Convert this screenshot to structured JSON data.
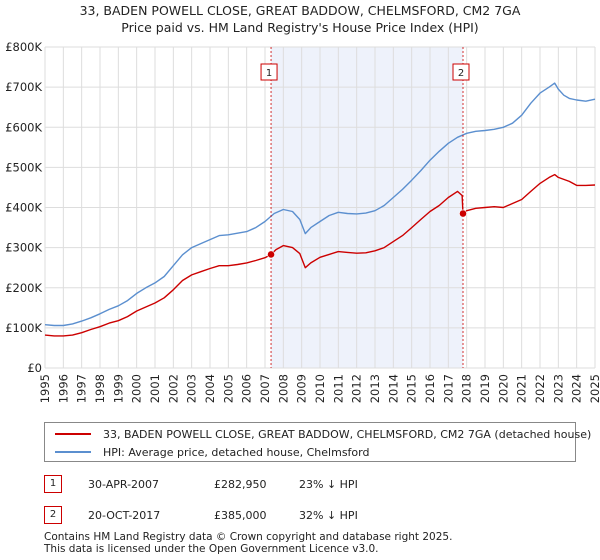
{
  "chart_data": {
    "type": "line",
    "title": "33, BADEN POWELL CLOSE, GREAT BADDOW, CHELMSFORD, CM2 7GA",
    "subtitle": "Price paid vs. HM Land Registry's House Price Index (HPI)",
    "xlim": [
      1995,
      2025
    ],
    "ylim": [
      0,
      800000
    ],
    "x_ticks": [
      "1995",
      "1996",
      "1997",
      "1998",
      "1999",
      "2000",
      "2001",
      "2002",
      "2003",
      "2004",
      "2005",
      "2006",
      "2007",
      "2008",
      "2009",
      "2010",
      "2011",
      "2012",
      "2013",
      "2014",
      "2015",
      "2016",
      "2017",
      "2018",
      "2019",
      "2020",
      "2021",
      "2022",
      "2023",
      "2024",
      "2025"
    ],
    "y_ticks": [
      {
        "value": 0,
        "label": "£0"
      },
      {
        "value": 100000,
        "label": "£100K"
      },
      {
        "value": 200000,
        "label": "£200K"
      },
      {
        "value": 300000,
        "label": "£300K"
      },
      {
        "value": 400000,
        "label": "£400K"
      },
      {
        "value": 500000,
        "label": "£500K"
      },
      {
        "value": 600000,
        "label": "£600K"
      },
      {
        "value": 700000,
        "label": "£700K"
      },
      {
        "value": 800000,
        "label": "£800K"
      }
    ],
    "grid": true,
    "shaded_period": [
      2007.33,
      2017.8
    ],
    "series": [
      {
        "name": "33, BADEN POWELL CLOSE, GREAT BADDOW, CHELMSFORD, CM2 7GA (detached house)",
        "color": "#cc0000",
        "x": [
          1995.0,
          1995.5,
          1996.0,
          1996.5,
          1997.0,
          1997.5,
          1998.0,
          1998.5,
          1999.0,
          1999.5,
          2000.0,
          2000.5,
          2001.0,
          2001.5,
          2002.0,
          2002.5,
          2003.0,
          2003.5,
          2004.0,
          2004.5,
          2005.0,
          2005.5,
          2006.0,
          2006.5,
          2007.0,
          2007.33,
          2007.6,
          2008.0,
          2008.5,
          2008.9,
          2009.2,
          2009.5,
          2010.0,
          2010.5,
          2011.0,
          2011.5,
          2012.0,
          2012.5,
          2013.0,
          2013.5,
          2014.0,
          2014.5,
          2015.0,
          2015.5,
          2016.0,
          2016.5,
          2017.0,
          2017.5,
          2017.75,
          2017.8,
          2018.0,
          2018.5,
          2019.0,
          2019.5,
          2020.0,
          2020.5,
          2021.0,
          2021.5,
          2022.0,
          2022.5,
          2022.8,
          2023.0,
          2023.3,
          2023.6,
          2024.0,
          2024.5,
          2025.0
        ],
        "values": [
          82000,
          80000,
          80000,
          82000,
          88000,
          96000,
          103000,
          112000,
          118000,
          128000,
          142000,
          152000,
          162000,
          175000,
          195000,
          218000,
          232000,
          240000,
          248000,
          255000,
          255000,
          258000,
          262000,
          268000,
          275000,
          282950,
          295000,
          305000,
          300000,
          285000,
          250000,
          262000,
          276000,
          283000,
          290000,
          288000,
          286000,
          287000,
          292000,
          300000,
          315000,
          330000,
          350000,
          370000,
          390000,
          405000,
          425000,
          440000,
          430000,
          385000,
          392000,
          398000,
          400000,
          402000,
          400000,
          410000,
          420000,
          440000,
          460000,
          475000,
          482000,
          475000,
          470000,
          465000,
          455000,
          455000,
          456000
        ]
      },
      {
        "name": "HPI: Average price, detached house, Chelmsford",
        "color": "#5b8fcf",
        "x": [
          1995.0,
          1995.5,
          1996.0,
          1996.5,
          1997.0,
          1997.5,
          1998.0,
          1998.5,
          1999.0,
          1999.5,
          2000.0,
          2000.5,
          2001.0,
          2001.5,
          2002.0,
          2002.5,
          2003.0,
          2003.5,
          2004.0,
          2004.5,
          2005.0,
          2005.5,
          2006.0,
          2006.5,
          2007.0,
          2007.5,
          2008.0,
          2008.5,
          2008.9,
          2009.2,
          2009.5,
          2010.0,
          2010.5,
          2011.0,
          2011.5,
          2012.0,
          2012.5,
          2013.0,
          2013.5,
          2014.0,
          2014.5,
          2015.0,
          2015.5,
          2016.0,
          2016.5,
          2017.0,
          2017.5,
          2018.0,
          2018.5,
          2019.0,
          2019.5,
          2020.0,
          2020.5,
          2021.0,
          2021.5,
          2022.0,
          2022.5,
          2022.8,
          2023.0,
          2023.3,
          2023.6,
          2024.0,
          2024.5,
          2025.0
        ],
        "values": [
          108000,
          106000,
          106000,
          110000,
          117000,
          125000,
          135000,
          146000,
          155000,
          168000,
          186000,
          200000,
          212000,
          228000,
          255000,
          282000,
          300000,
          310000,
          320000,
          330000,
          332000,
          336000,
          340000,
          350000,
          365000,
          385000,
          395000,
          390000,
          370000,
          335000,
          350000,
          365000,
          380000,
          388000,
          385000,
          384000,
          386000,
          392000,
          405000,
          425000,
          445000,
          468000,
          492000,
          518000,
          540000,
          560000,
          575000,
          585000,
          590000,
          592000,
          595000,
          600000,
          610000,
          630000,
          660000,
          685000,
          700000,
          710000,
          695000,
          680000,
          672000,
          668000,
          665000,
          670000
        ]
      }
    ],
    "sales": [
      {
        "id": "1",
        "x": 2007.33,
        "value": 282950,
        "date": "30-APR-2007",
        "price": "£282,950",
        "hpi": "23% ↓ HPI"
      },
      {
        "id": "2",
        "x": 2017.8,
        "value": 385000,
        "date": "20-OCT-2017",
        "price": "£385,000",
        "hpi": "32% ↓ HPI"
      }
    ]
  },
  "legend": {
    "property_label": "33, BADEN POWELL CLOSE, GREAT BADDOW, CHELMSFORD, CM2 7GA (detached house)",
    "hpi_label": "HPI: Average price, detached house, Chelmsford"
  },
  "footer": {
    "line1": "Contains HM Land Registry data © Crown copyright and database right 2025.",
    "line2": "This data is licensed under the Open Government Licence v3.0."
  },
  "colors": {
    "property": "#cc0000",
    "hpi": "#5b8fcf",
    "shade": "#eef2fb",
    "grid": "#dddddd"
  }
}
